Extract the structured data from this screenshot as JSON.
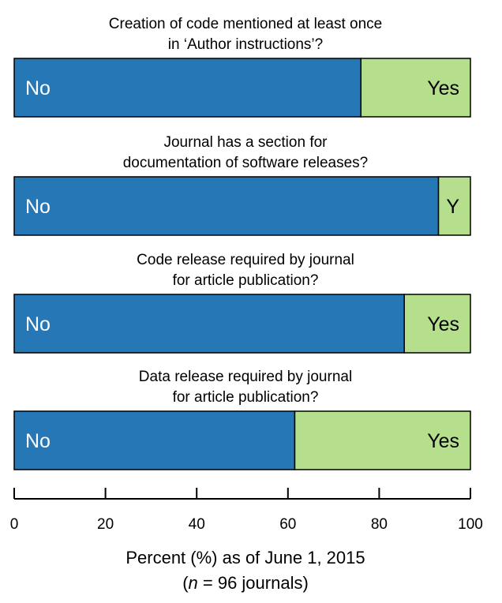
{
  "chart_data": {
    "type": "bar",
    "orientation": "horizontal",
    "stacked": true,
    "xlabel": "Percent (%) as of June 1, 2015",
    "xlabel_line2_italic": "n",
    "xlabel_line2_rest": " = 96 journals)",
    "xlabel_line2_open": "(",
    "xlim": [
      0,
      100
    ],
    "xticks": [
      "0",
      "20",
      "40",
      "60",
      "80",
      "100"
    ],
    "grid": false,
    "colors": {
      "no": "#2677b5",
      "yes": "#b5df8d",
      "outline": "#000000"
    },
    "panels": [
      {
        "title_lines": [
          "Creation of code mentioned at least once",
          "in ‘Author instructions’?"
        ],
        "segments": [
          {
            "name": "No",
            "label": "No",
            "value": 76
          },
          {
            "name": "Yes",
            "label": "Yes",
            "value": 24
          }
        ]
      },
      {
        "title_lines": [
          "Journal has a section for",
          "documentation of software releases?"
        ],
        "segments": [
          {
            "name": "No",
            "label": "No",
            "value": 93
          },
          {
            "name": "Yes",
            "label": "Y",
            "value": 7
          }
        ]
      },
      {
        "title_lines": [
          "Code release required by journal",
          "for article publication?"
        ],
        "segments": [
          {
            "name": "No",
            "label": "No",
            "value": 85.5
          },
          {
            "name": "Yes",
            "label": "Yes",
            "value": 14.5
          }
        ]
      },
      {
        "title_lines": [
          "Data release required by journal",
          "for article publication?"
        ],
        "segments": [
          {
            "name": "No",
            "label": "No",
            "value": 61.5
          },
          {
            "name": "Yes",
            "label": "Yes",
            "value": 38.5
          }
        ]
      }
    ]
  }
}
